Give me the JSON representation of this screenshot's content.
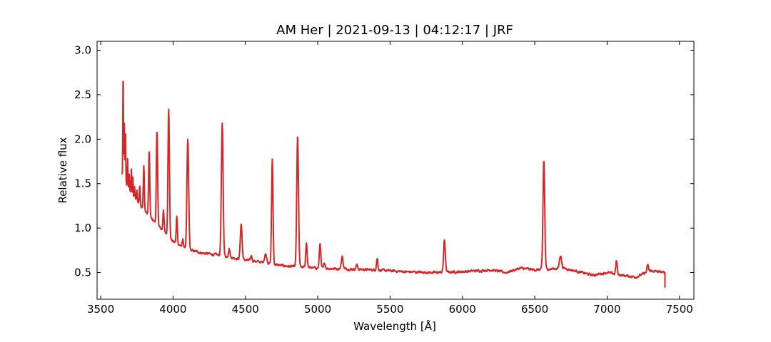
{
  "chart_data": {
    "type": "line",
    "title": "AM Her | 2021-09-13 | 04:12:17 | JRF",
    "xlabel": "Wavelength [Å]",
    "ylabel": "Relative flux",
    "xlim": [
      3475,
      7600
    ],
    "ylim": [
      0.2,
      3.1
    ],
    "xticks": [
      3500,
      4000,
      4500,
      5000,
      5500,
      6000,
      6500,
      7000,
      7500
    ],
    "yticks": [
      0.5,
      1.0,
      1.5,
      2.0,
      2.5,
      3.0
    ],
    "grid": false,
    "series_color": "#d62728",
    "continuum": [
      [
        3648,
        1.6
      ],
      [
        3700,
        1.42
      ],
      [
        3800,
        1.2
      ],
      [
        3900,
        1.02
      ],
      [
        4000,
        0.85
      ],
      [
        4100,
        0.76
      ],
      [
        4200,
        0.72
      ],
      [
        4300,
        0.7
      ],
      [
        4400,
        0.67
      ],
      [
        4500,
        0.64
      ],
      [
        4600,
        0.62
      ],
      [
        4700,
        0.59
      ],
      [
        4800,
        0.57
      ],
      [
        4900,
        0.56
      ],
      [
        5000,
        0.55
      ],
      [
        5200,
        0.54
      ],
      [
        5400,
        0.53
      ],
      [
        5600,
        0.51
      ],
      [
        5800,
        0.5
      ],
      [
        6000,
        0.51
      ],
      [
        6200,
        0.53
      ],
      [
        6300,
        0.5
      ],
      [
        6400,
        0.55
      ],
      [
        6500,
        0.53
      ],
      [
        6700,
        0.55
      ],
      [
        6800,
        0.51
      ],
      [
        6900,
        0.47
      ],
      [
        7000,
        0.5
      ],
      [
        7100,
        0.47
      ],
      [
        7200,
        0.45
      ],
      [
        7300,
        0.52
      ],
      [
        7400,
        0.5
      ]
    ],
    "emission_lines": [
      {
        "wavelength": 3655,
        "amplitude": 1.2,
        "width": 2
      },
      {
        "wavelength": 3663,
        "amplitude": 0.7,
        "width": 2
      },
      {
        "wavelength": 3671,
        "amplitude": 0.6,
        "width": 2
      },
      {
        "wavelength": 3686,
        "amplitude": 0.3,
        "width": 2
      },
      {
        "wavelength": 3697,
        "amplitude": 0.2,
        "width": 2
      },
      {
        "wavelength": 3712,
        "amplitude": 0.28,
        "width": 2
      },
      {
        "wavelength": 3722,
        "amplitude": 0.2,
        "width": 2
      },
      {
        "wavelength": 3734,
        "amplitude": 0.12,
        "width": 2
      },
      {
        "wavelength": 3750,
        "amplitude": 0.12,
        "width": 2.5
      },
      {
        "wavelength": 3770,
        "amplitude": 0.22,
        "width": 3
      },
      {
        "wavelength": 3798,
        "amplitude": 0.5,
        "width": 3.5
      },
      {
        "wavelength": 3835,
        "amplitude": 0.73,
        "width": 4
      },
      {
        "wavelength": 3889,
        "amplitude": 1.05,
        "width": 4.5
      },
      {
        "wavelength": 3934,
        "amplitude": 0.25,
        "width": 4
      },
      {
        "wavelength": 3970,
        "amplitude": 1.45,
        "width": 5
      },
      {
        "wavelength": 4026,
        "amplitude": 0.3,
        "width": 4
      },
      {
        "wavelength": 4068,
        "amplitude": 0.08,
        "width": 4
      },
      {
        "wavelength": 4102,
        "amplitude": 1.23,
        "width": 6
      },
      {
        "wavelength": 4340,
        "amplitude": 1.48,
        "width": 6
      },
      {
        "wavelength": 4388,
        "amplitude": 0.1,
        "width": 5
      },
      {
        "wavelength": 4471,
        "amplitude": 0.4,
        "width": 6
      },
      {
        "wavelength": 4541,
        "amplitude": 0.06,
        "width": 5
      },
      {
        "wavelength": 4640,
        "amplitude": 0.1,
        "width": 8
      },
      {
        "wavelength": 4686,
        "amplitude": 1.18,
        "width": 5
      },
      {
        "wavelength": 4861,
        "amplitude": 1.47,
        "width": 6
      },
      {
        "wavelength": 4922,
        "amplitude": 0.28,
        "width": 5
      },
      {
        "wavelength": 5016,
        "amplitude": 0.28,
        "width": 5
      },
      {
        "wavelength": 5048,
        "amplitude": 0.06,
        "width": 5
      },
      {
        "wavelength": 5169,
        "amplitude": 0.14,
        "width": 6
      },
      {
        "wavelength": 5270,
        "amplitude": 0.05,
        "width": 6
      },
      {
        "wavelength": 5411,
        "amplitude": 0.13,
        "width": 5
      },
      {
        "wavelength": 5876,
        "amplitude": 0.36,
        "width": 6
      },
      {
        "wavelength": 6563,
        "amplitude": 1.23,
        "width": 6
      },
      {
        "wavelength": 6678,
        "amplitude": 0.15,
        "width": 7
      },
      {
        "wavelength": 7065,
        "amplitude": 0.15,
        "width": 5
      },
      {
        "wavelength": 7281,
        "amplitude": 0.08,
        "width": 5
      }
    ]
  }
}
